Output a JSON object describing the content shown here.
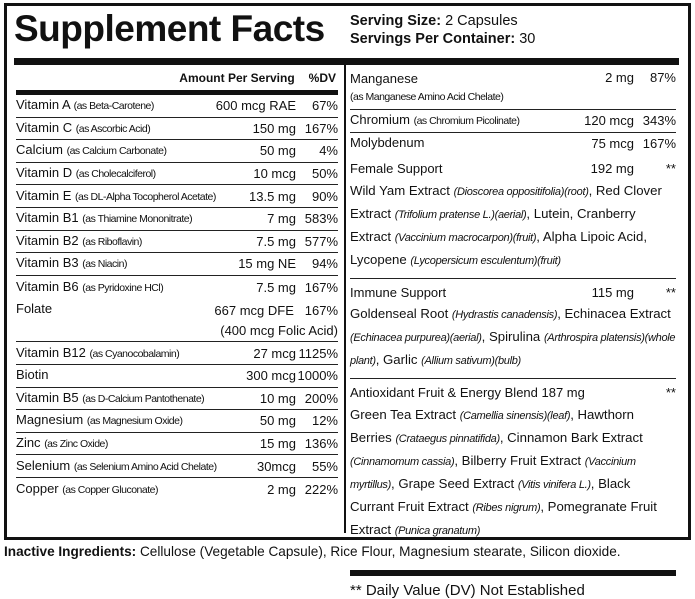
{
  "title": "Supplement Facts",
  "serving": {
    "size_label": "Serving Size:",
    "size_value": "2 Capsules",
    "per_container_label": "Servings Per Container:",
    "per_container_value": "30"
  },
  "header": {
    "amount": "Amount Per Serving",
    "dv": "%DV"
  },
  "left_rows": [
    {
      "name": "Vitamin A",
      "source": "(as Beta-Carotene)",
      "amount": "600 mcg RAE",
      "dv": "67%"
    },
    {
      "name": "Vitamin C",
      "source": "(as Ascorbic Acid)",
      "amount": "150 mg",
      "dv": "167%"
    },
    {
      "name": "Calcium",
      "source": "(as Calcium Carbonate)",
      "amount": "50 mg",
      "dv": "4%"
    },
    {
      "name": "Vitamin D",
      "source": "(as Cholecalciferol)",
      "amount": "10 mcg",
      "dv": "50%"
    },
    {
      "name": "Vitamin E",
      "source": "(as DL-Alpha Tocopherol Acetate)",
      "amount": "13.5 mg",
      "dv": "90%"
    },
    {
      "name": "Vitamin B1",
      "source": "(as Thiamine Mononitrate)",
      "amount": "7 mg",
      "dv": "583%"
    },
    {
      "name": "Vitamin B2",
      "source": "(as Riboflavin)",
      "amount": "7.5 mg",
      "dv": "577%"
    },
    {
      "name": "Vitamin B3",
      "source": "(as Niacin)",
      "amount": "15 mg NE",
      "dv": "94%"
    },
    {
      "name": "Vitamin B6",
      "source": "(as Pyridoxine HCl)",
      "amount": "7.5 mg",
      "dv": "167%"
    }
  ],
  "folate": {
    "name": "Folate",
    "amount": "667 mcg DFE",
    "dv": "167%",
    "sub": "(400 mcg Folic Acid)"
  },
  "left_rows2": [
    {
      "name": "Vitamin B12",
      "source": "(as Cyanocobalamin)",
      "amount": "27 mcg",
      "dv": "1125%"
    },
    {
      "name": "Biotin",
      "source": "",
      "amount": "300 mcg",
      "dv": "1000%"
    },
    {
      "name": "Vitamin B5",
      "source": "(as D-Calcium Pantothenate)",
      "amount": "10 mg",
      "dv": "200%"
    },
    {
      "name": "Magnesium",
      "source": "(as Magnesium Oxide)",
      "amount": "50 mg",
      "dv": "12%"
    },
    {
      "name": "Zinc",
      "source": "(as Zinc Oxide)",
      "amount": "15 mg",
      "dv": "136%"
    },
    {
      "name": "Selenium",
      "source": "(as Selenium Amino Acid Chelate)",
      "amount": "30mcg",
      "dv": "55%"
    },
    {
      "name": "Copper",
      "source": "(as Copper Gluconate)",
      "amount": "2 mg",
      "dv": "222%"
    }
  ],
  "manganese": {
    "name": "Manganese",
    "source": "(as Manganese Amino Acid Chelate)",
    "amount": "2 mg",
    "dv": "87%"
  },
  "right_rows": [
    {
      "name": "Chromium",
      "source": "(as Chromium Picolinate)",
      "amount": "120 mcg",
      "dv": "343%"
    },
    {
      "name": "Molybdenum",
      "source": "",
      "amount": "75 mcg",
      "dv": "167%"
    }
  ],
  "blends": [
    {
      "name": "Female Support",
      "amount": "192 mg",
      "dv": "**",
      "parts": [
        [
          "Wild Yam Extract ",
          "(Dioscorea oppositifolia)(root)",
          ", Red Clover Extract ",
          "(Trifolium pratense L.)(aerial)",
          ", Lutein, Cranberry Extract ",
          "(Vaccinium macrocarpon)(fruit)",
          ", Alpha Lipoic Acid, Lycopene ",
          "(Lycopersicum esculentum)(fruit)",
          ""
        ]
      ]
    },
    {
      "name": "Immune Support",
      "amount": "115 mg",
      "dv": "**",
      "parts": [
        [
          "Goldenseal Root ",
          "(Hydrastis canadensis)",
          ", Echinacea Extract ",
          "(Echinacea purpurea)(aerial)",
          ", Spirulina ",
          "(Arthrospira platensis)(whole plant)",
          ", Garlic ",
          "(Allium sativum)(bulb)",
          ""
        ]
      ]
    },
    {
      "name": "Antioxidant Fruit & Energy Blend 187 mg",
      "amount": "",
      "dv": "**",
      "parts": [
        [
          "Green Tea Extract ",
          "(Camellia sinensis)(leaf)",
          ", Hawthorn Berries ",
          "(Crataegus pinnatifida)",
          ", Cinnamon Bark Extract ",
          "(Cinnamomum cassia)",
          ", Bilberry Fruit Extract ",
          "(Vaccinium myrtillus)",
          ", Grape Seed Extract ",
          "(Vitis vinifera L.)",
          ", Black Currant Fruit Extract ",
          "(Ribes nigrum)",
          ", Pomegranate Fruit Extract ",
          "(Punica granatum)",
          ""
        ]
      ]
    }
  ],
  "footnote": "** Daily Value (DV) Not Established",
  "inactive": {
    "label": "Inactive Ingredients:",
    "text": " Cellulose (Vegetable Capsule), Rice Flour, Magnesium stearate, Silicon dioxide."
  }
}
